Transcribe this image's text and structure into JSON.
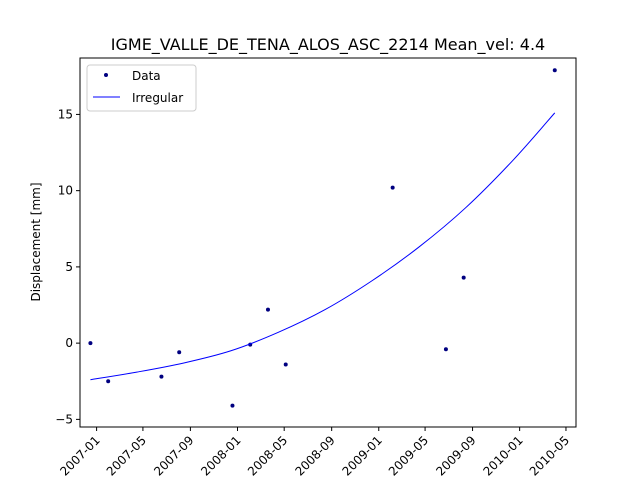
{
  "chart_data": {
    "type": "scatter",
    "title": "IGME_VALLE_DE_TENA_ALOS_ASC_2214    Mean_vel: 4.4",
    "xlabel": "",
    "ylabel": "Displacement [mm]",
    "x_axis_type": "date",
    "xlim": [
      "2006-11-19",
      "2010-05-27"
    ],
    "ylim": [
      -5.5,
      18.7
    ],
    "x_ticks": [
      "2007-01-01",
      "2007-05-01",
      "2007-09-01",
      "2008-01-01",
      "2008-05-01",
      "2008-09-01",
      "2009-01-01",
      "2009-05-01",
      "2009-09-01",
      "2010-01-01",
      "2010-05-01"
    ],
    "x_tick_labels": [
      "2007-01",
      "2007-05",
      "2007-09",
      "2008-01",
      "2008-05",
      "2008-09",
      "2009-01",
      "2009-05",
      "2009-09",
      "2010-01",
      "2010-05"
    ],
    "y_ticks": [
      -5,
      0,
      5,
      10,
      15
    ],
    "y_tick_labels": [
      "−5",
      "0",
      "5",
      "10",
      "15"
    ],
    "grid": false,
    "legend_position": "top-left",
    "series": [
      {
        "name": "Data",
        "style": "points",
        "color": "#000080",
        "x": [
          "2006-12-16",
          "2007-01-31",
          "2007-06-18",
          "2007-08-03",
          "2007-12-19",
          "2008-02-03",
          "2008-03-20",
          "2008-05-05",
          "2009-02-06",
          "2009-06-24",
          "2009-08-09",
          "2010-04-02"
        ],
        "y": [
          0.0,
          -2.5,
          -2.2,
          -0.6,
          -4.1,
          -0.1,
          2.2,
          -1.4,
          10.2,
          -0.4,
          4.3,
          17.9
        ]
      },
      {
        "name": "Irregular",
        "style": "line",
        "color": "#0000ff",
        "x": [
          "2006-12-16",
          "2007-04-15",
          "2007-08-15",
          "2007-12-15",
          "2008-04-15",
          "2008-08-15",
          "2008-12-15",
          "2009-04-15",
          "2009-08-15",
          "2009-12-15",
          "2010-04-02"
        ],
        "y": [
          -2.4,
          -1.9,
          -1.3,
          -0.5,
          0.7,
          2.2,
          4.1,
          6.3,
          8.9,
          12.0,
          15.1
        ]
      }
    ]
  }
}
